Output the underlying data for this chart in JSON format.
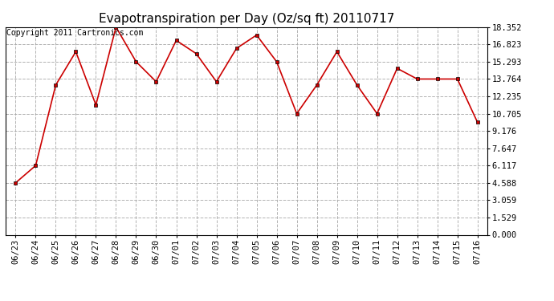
{
  "title": "Evapotranspiration per Day (Oz/sq ft) 20110717",
  "copyright_text": "Copyright 2011 Cartronics.com",
  "dates": [
    "06/23",
    "06/24",
    "06/25",
    "06/26",
    "06/27",
    "06/28",
    "06/29",
    "06/30",
    "07/01",
    "07/02",
    "07/03",
    "07/04",
    "07/05",
    "07/06",
    "07/07",
    "07/08",
    "07/09",
    "07/10",
    "07/11",
    "07/12",
    "07/13",
    "07/14",
    "07/15",
    "07/16"
  ],
  "values": [
    4.588,
    6.117,
    13.235,
    16.176,
    11.47,
    18.352,
    15.293,
    13.529,
    17.176,
    16.0,
    13.529,
    16.47,
    17.647,
    15.293,
    10.705,
    13.235,
    16.176,
    13.235,
    10.705,
    14.705,
    13.764,
    13.764,
    13.764,
    9.941
  ],
  "line_color": "#cc0000",
  "marker_color": "#cc0000",
  "bg_color": "#ffffff",
  "plot_bg_color": "#ffffff",
  "grid_color": "#aaaaaa",
  "yticks": [
    0.0,
    1.529,
    3.059,
    4.588,
    6.117,
    7.647,
    9.176,
    10.705,
    12.235,
    13.764,
    15.293,
    16.823,
    18.352
  ],
  "ylim": [
    0.0,
    18.352
  ],
  "title_fontsize": 11,
  "copyright_fontsize": 7,
  "tick_fontsize": 7.5
}
